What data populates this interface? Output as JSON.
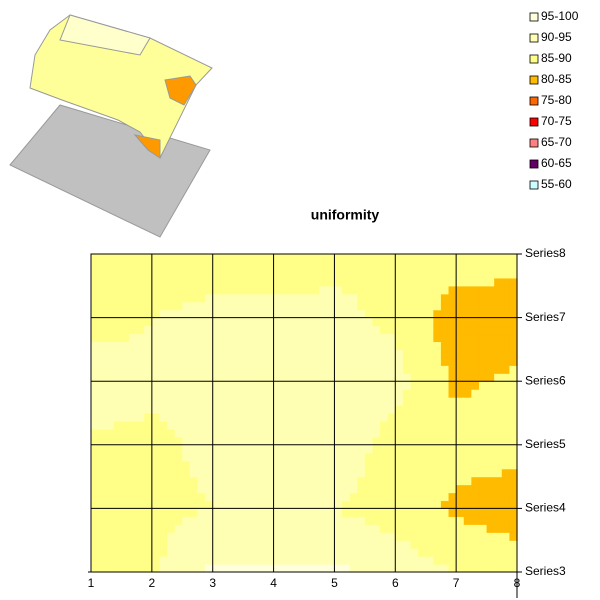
{
  "chart_data": {
    "type": "contour",
    "title": "uniformity",
    "x": [
      1,
      2,
      3,
      4,
      5,
      6,
      7,
      8
    ],
    "xlim": [
      1,
      8
    ],
    "series": [
      {
        "name": "Series3",
        "values": [
          89,
          89,
          96,
          96,
          96,
          93,
          90,
          88
        ]
      },
      {
        "name": "Series4",
        "values": [
          88,
          89,
          90,
          90,
          90,
          88,
          84,
          82
        ]
      },
      {
        "name": "Series5",
        "values": [
          88,
          89,
          91,
          91,
          93,
          88,
          87,
          87
        ]
      },
      {
        "name": "Series6",
        "values": [
          95,
          91,
          92,
          92,
          92,
          92,
          84,
          86
        ]
      },
      {
        "name": "Series7",
        "values": [
          87,
          90,
          91,
          91,
          91,
          89,
          82,
          82
        ]
      },
      {
        "name": "Series8",
        "values": [
          87,
          87,
          88,
          88,
          89,
          90,
          88,
          87
        ]
      }
    ],
    "legend": [
      {
        "name": "95-100",
        "min": 95,
        "max": 100,
        "color": "#ffffdd"
      },
      {
        "name": "90-95",
        "min": 90,
        "max": 95,
        "color": "#ffffb3"
      },
      {
        "name": "85-90",
        "min": 85,
        "max": 90,
        "color": "#ffff88"
      },
      {
        "name": "80-85",
        "min": 80,
        "max": 85,
        "color": "#ffbb00"
      },
      {
        "name": "75-80",
        "min": 75,
        "max": 80,
        "color": "#ff6600"
      },
      {
        "name": "70-75",
        "min": 70,
        "max": 75,
        "color": "#ff0000"
      },
      {
        "name": "65-70",
        "min": 65,
        "max": 70,
        "color": "#ff8080"
      },
      {
        "name": "60-65",
        "min": 60,
        "max": 65,
        "color": "#660066"
      },
      {
        "name": "55-60",
        "min": 55,
        "max": 60,
        "color": "#ccffff"
      }
    ]
  }
}
